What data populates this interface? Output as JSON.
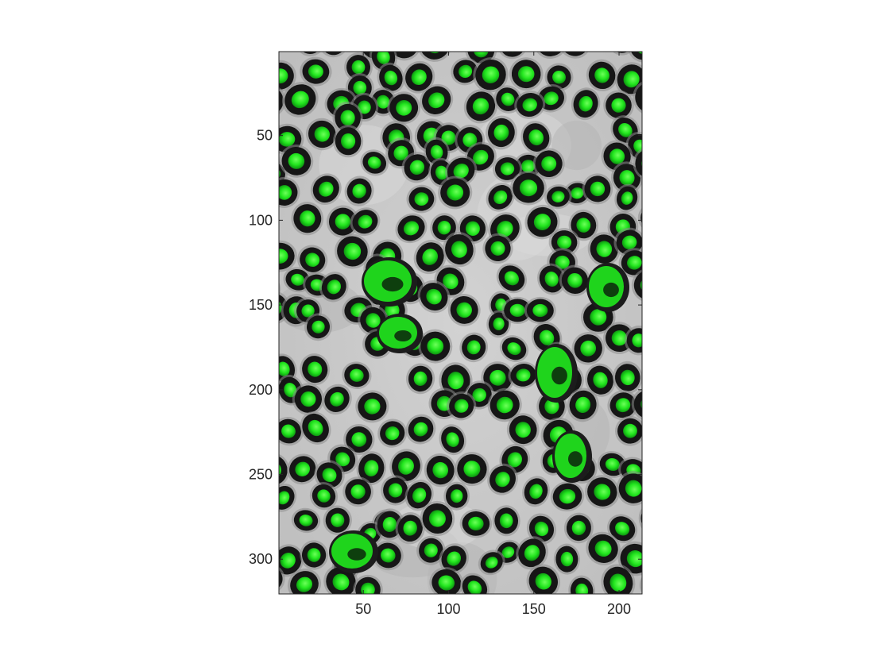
{
  "chart_data": {
    "type": "image",
    "title": "",
    "xlabel": "",
    "ylabel": "",
    "image_size": [
      213,
      320
    ],
    "xlim": [
      0.5,
      213.5
    ],
    "ylim": [
      0.5,
      320.5
    ],
    "y_direction": "reverse",
    "x_ticks": [
      50,
      100,
      150,
      200
    ],
    "y_ticks": [
      50,
      100,
      150,
      200,
      250,
      300
    ],
    "x_tick_labels": [
      "50",
      "100",
      "150",
      "200"
    ],
    "y_tick_labels": [
      "50",
      "100",
      "150",
      "200",
      "250",
      "300"
    ],
    "content": "overlay of grayscale brightfield micrograph of round cells with green fluorescence channel",
    "colors": {
      "background": "#c8c8c8",
      "cell_ring": "#1a1a1a",
      "fluorescence": "#22e61e",
      "axes": "#262626"
    }
  }
}
